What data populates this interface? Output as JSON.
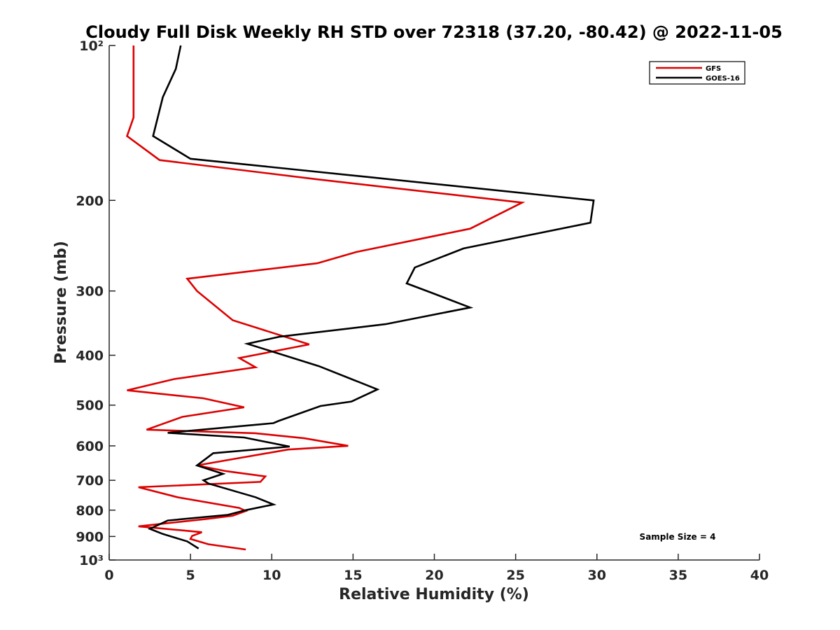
{
  "chart_data": {
    "type": "line",
    "title": "Cloudy Full Disk Weekly RH STD over 72318 (37.20, -80.42) @ 2022-11-05",
    "xlabel": "Relative Humidity (%)",
    "ylabel": "Pressure (mb)",
    "xlim": [
      0,
      40
    ],
    "ylim": [
      100,
      1000
    ],
    "yscale": "log",
    "y_reversed": true,
    "x_ticks": [
      0,
      5,
      10,
      15,
      20,
      25,
      30,
      35,
      40
    ],
    "x_tick_labels": [
      "0",
      "5",
      "10",
      "15",
      "20",
      "25",
      "30",
      "35",
      "40"
    ],
    "y_ticks": [
      100,
      200,
      300,
      400,
      500,
      600,
      700,
      800,
      900,
      1000
    ],
    "y_tick_labels": [
      "10²",
      "200",
      "300",
      "400",
      "500",
      "600",
      "700",
      "800",
      "900",
      "10³"
    ],
    "legend_position": "top-right",
    "annotation": "Sample Size = 4",
    "series": [
      {
        "name": "GFS",
        "color": "#dd0000",
        "points": [
          [
            1.5,
            100
          ],
          [
            1.5,
            125
          ],
          [
            1.5,
            138
          ],
          [
            1.1,
            150
          ],
          [
            3.1,
            167
          ],
          [
            12.8,
            182
          ],
          [
            25.4,
            202
          ],
          [
            22.2,
            227
          ],
          [
            15.2,
            252
          ],
          [
            12.8,
            265
          ],
          [
            4.8,
            284
          ],
          [
            5.4,
            300
          ],
          [
            7.6,
            342
          ],
          [
            12.3,
            381
          ],
          [
            8.0,
            405
          ],
          [
            9.0,
            422
          ],
          [
            4.0,
            445
          ],
          [
            1.1,
            468
          ],
          [
            5.8,
            485
          ],
          [
            8.3,
            505
          ],
          [
            4.5,
            527
          ],
          [
            2.3,
            558
          ],
          [
            9.0,
            567
          ],
          [
            12.0,
            580
          ],
          [
            14.7,
            600
          ],
          [
            11.0,
            610
          ],
          [
            5.4,
            655
          ],
          [
            7.2,
            672
          ],
          [
            9.6,
            688
          ],
          [
            9.3,
            705
          ],
          [
            1.8,
            722
          ],
          [
            4.2,
            755
          ],
          [
            8.0,
            792
          ],
          [
            8.4,
            803
          ],
          [
            7.6,
            820
          ],
          [
            6.0,
            832
          ],
          [
            1.8,
            860
          ],
          [
            5.7,
            883
          ],
          [
            5.1,
            898
          ],
          [
            5.0,
            910
          ],
          [
            6.1,
            932
          ],
          [
            8.4,
            954
          ]
        ]
      },
      {
        "name": "GOES-16",
        "color": "#000000",
        "points": [
          [
            4.4,
            100
          ],
          [
            4.1,
            111
          ],
          [
            3.3,
            126
          ],
          [
            2.7,
            150
          ],
          [
            5.0,
            166
          ],
          [
            15.8,
            180
          ],
          [
            29.8,
            200
          ],
          [
            29.6,
            221
          ],
          [
            21.8,
            248
          ],
          [
            18.8,
            270
          ],
          [
            18.3,
            290
          ],
          [
            19.9,
            303
          ],
          [
            22.2,
            323
          ],
          [
            17.0,
            348
          ],
          [
            10.5,
            368
          ],
          [
            8.5,
            380
          ],
          [
            12.9,
            420
          ],
          [
            16.5,
            466
          ],
          [
            14.9,
            492
          ],
          [
            13.0,
            502
          ],
          [
            10.4,
            537
          ],
          [
            10.1,
            542
          ],
          [
            3.6,
            566
          ],
          [
            8.3,
            578
          ],
          [
            11.1,
            602
          ],
          [
            6.4,
            620
          ],
          [
            5.4,
            655
          ],
          [
            7.0,
            680
          ],
          [
            5.8,
            700
          ],
          [
            6.1,
            710
          ],
          [
            9.0,
            755
          ],
          [
            10.1,
            780
          ],
          [
            8.4,
            800
          ],
          [
            7.3,
            817
          ],
          [
            3.6,
            838
          ],
          [
            2.5,
            870
          ],
          [
            3.3,
            890
          ],
          [
            4.8,
            920
          ],
          [
            5.5,
            950
          ]
        ]
      }
    ]
  }
}
